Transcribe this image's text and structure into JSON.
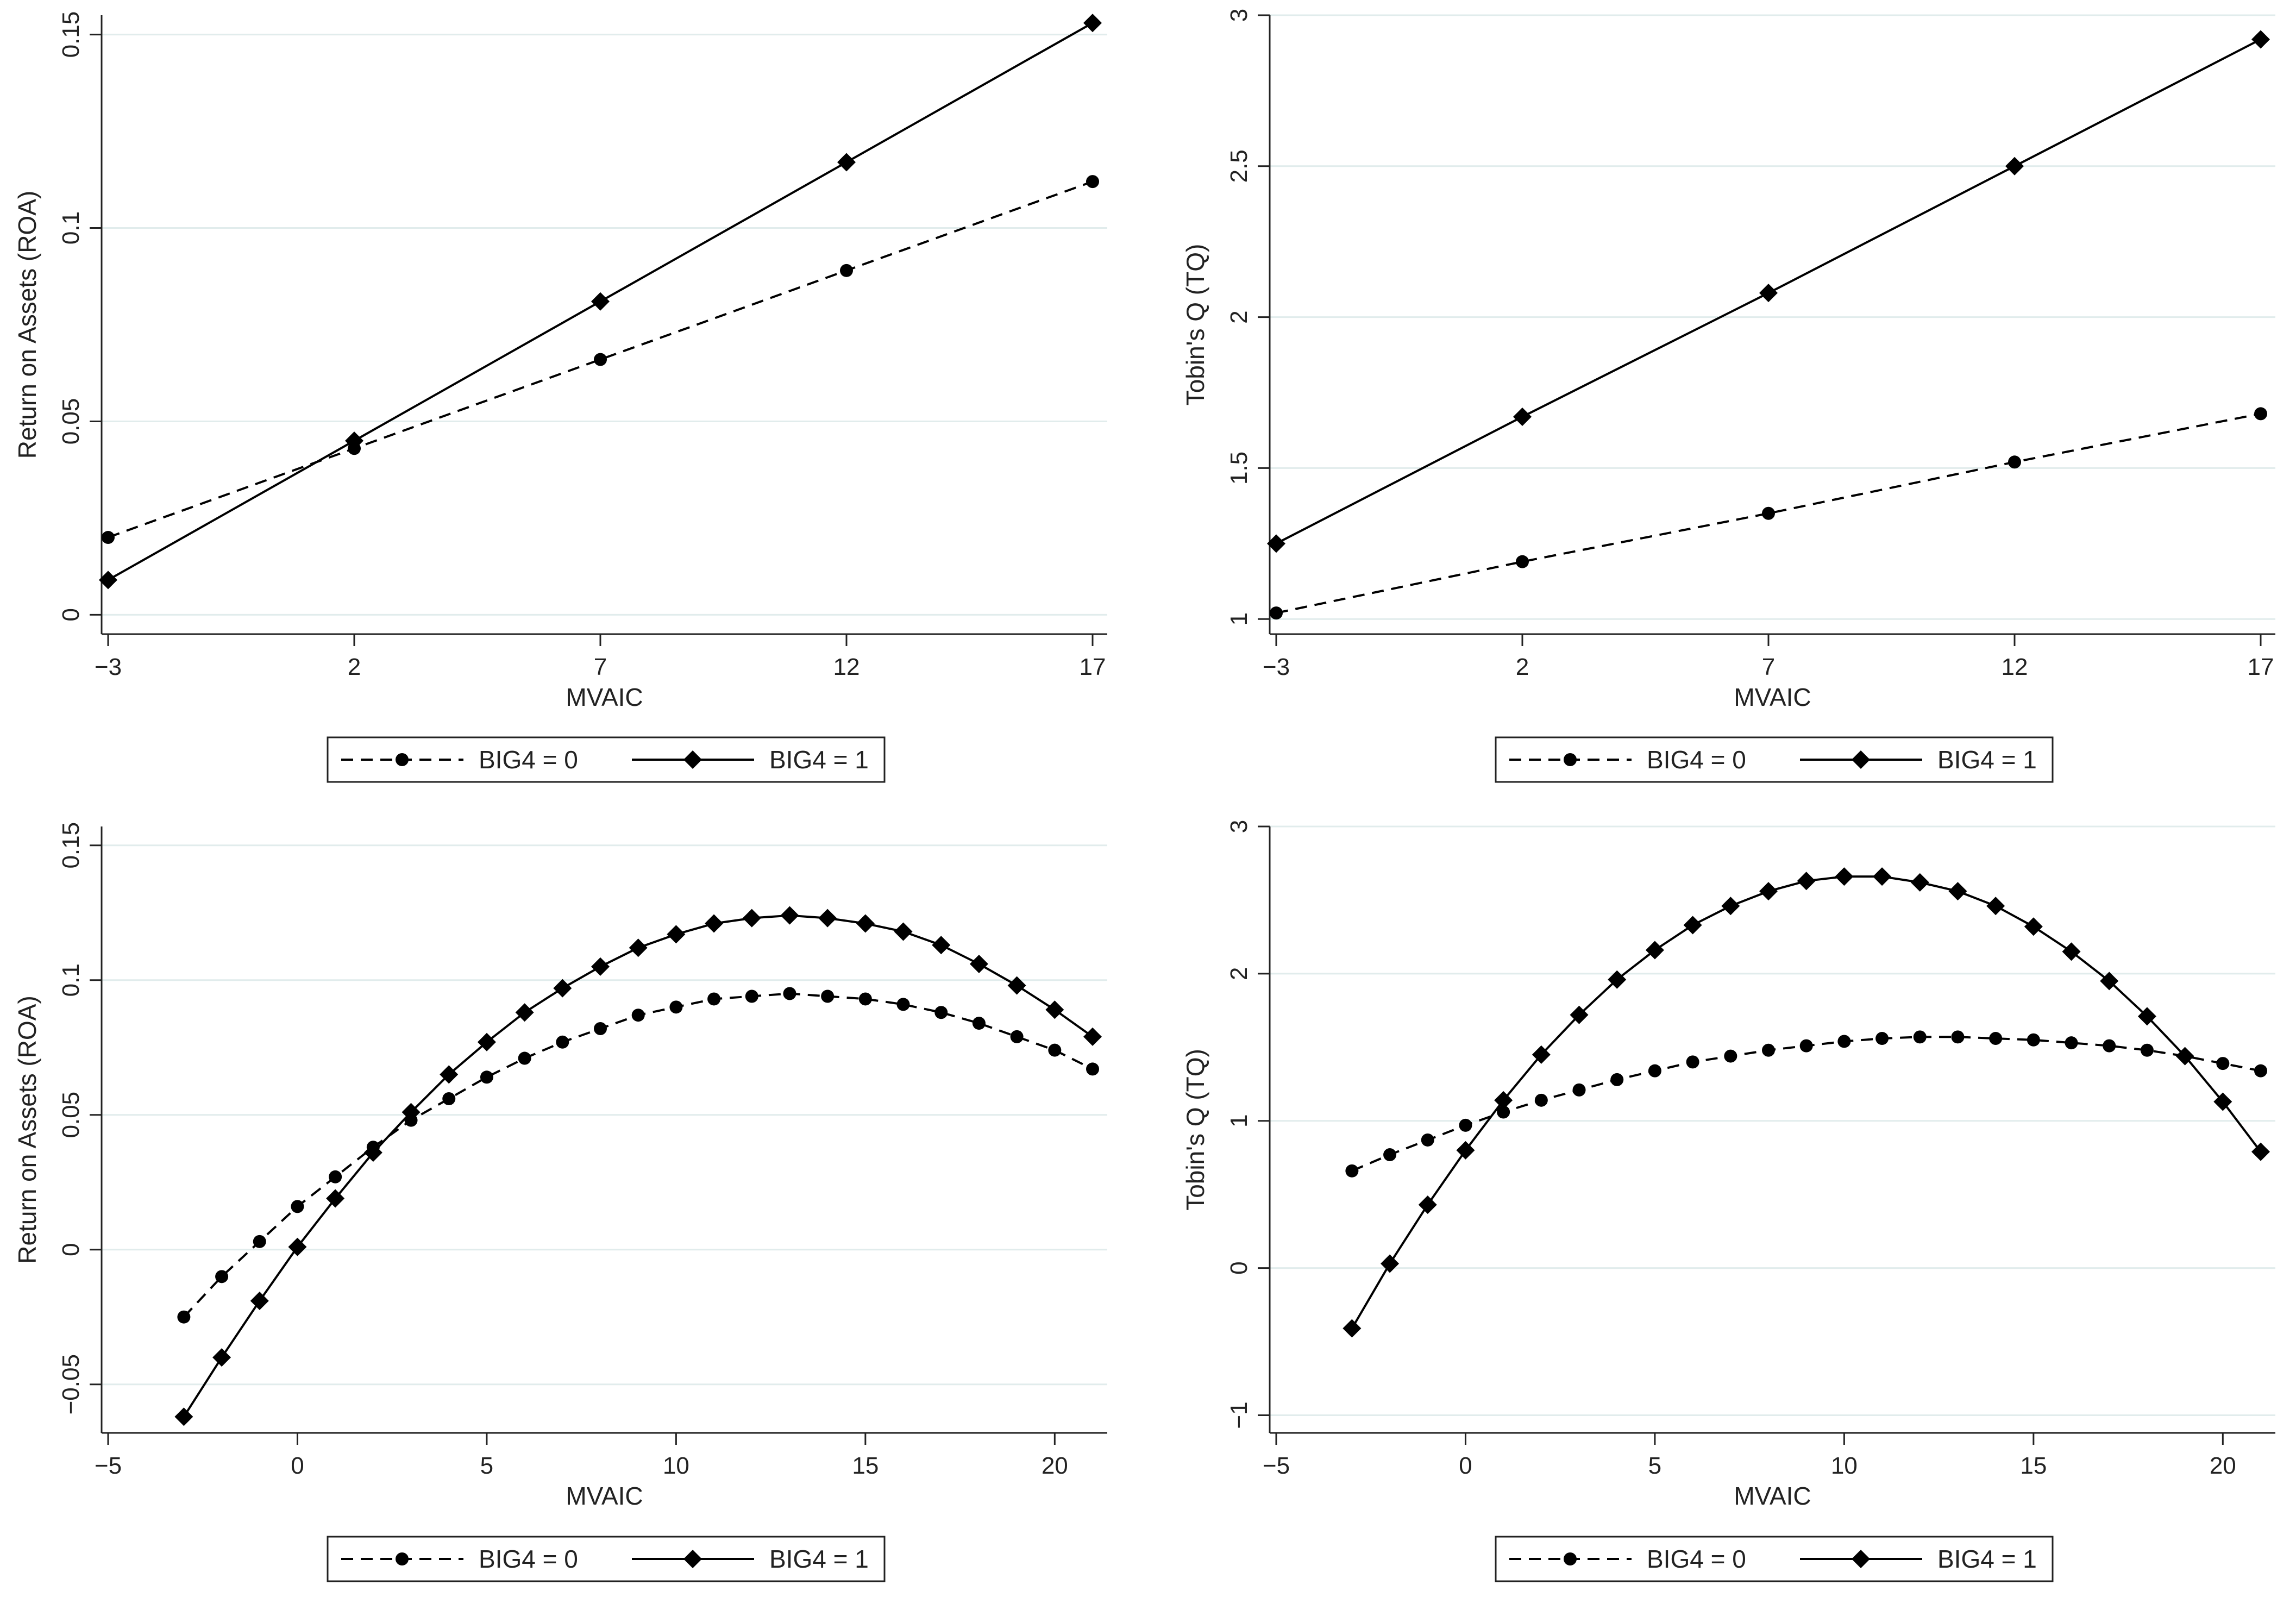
{
  "colors": {
    "background": "#ffffff",
    "axis": "#222222",
    "grid": "#e1ecec",
    "line": "#000000"
  },
  "chart_data": [
    {
      "type": "line",
      "id": "p1",
      "xlabel": "MVAIC",
      "ylabel": "Return on Assets (ROA)",
      "xlim": [
        -3,
        17
      ],
      "ylim": [
        -0.005,
        0.155
      ],
      "xticks": [
        -3,
        2,
        7,
        12,
        17
      ],
      "xtick_labels": [
        "−3",
        "2",
        "7",
        "12",
        "17"
      ],
      "yticks": [
        0,
        0.05,
        0.1,
        0.15
      ],
      "ytick_labels": [
        "0",
        "0.05",
        "0.1",
        "0.15"
      ],
      "grid": true,
      "legend_position": "bottom",
      "x": [
        -3,
        2,
        7,
        12,
        17
      ],
      "series": [
        {
          "name": "BIG4 = 0",
          "style": "dashed",
          "marker": "circle",
          "values": [
            0.02,
            0.043,
            0.066,
            0.089,
            0.112
          ]
        },
        {
          "name": "BIG4 = 1",
          "style": "solid",
          "marker": "diamond",
          "values": [
            0.009,
            0.045,
            0.081,
            0.117,
            0.153
          ]
        }
      ]
    },
    {
      "type": "line",
      "id": "p2",
      "xlabel": "MVAIC",
      "ylabel": "Tobin's Q (TQ)",
      "xlim": [
        -3,
        17
      ],
      "ylim": [
        0.95,
        3.0
      ],
      "xticks": [
        -3,
        2,
        7,
        12,
        17
      ],
      "xtick_labels": [
        "−3",
        "2",
        "7",
        "12",
        "17"
      ],
      "yticks": [
        1,
        1.5,
        2,
        2.5,
        3
      ],
      "ytick_labels": [
        "1",
        "1.5",
        "2",
        "2.5",
        "3"
      ],
      "grid": true,
      "legend_position": "bottom",
      "x": [
        -3,
        2,
        7,
        12,
        17
      ],
      "series": [
        {
          "name": "BIG4 = 0",
          "style": "dashed",
          "marker": "circle",
          "values": [
            1.02,
            1.19,
            1.35,
            1.52,
            1.68
          ]
        },
        {
          "name": "BIG4 = 1",
          "style": "solid",
          "marker": "diamond",
          "values": [
            1.25,
            1.67,
            2.08,
            2.5,
            2.92
          ]
        }
      ]
    },
    {
      "type": "line",
      "id": "p3",
      "xlabel": "MVAIC",
      "ylabel": "Return on Assets (ROA)",
      "xlim": [
        -5,
        21
      ],
      "ylim": [
        -0.068,
        0.157
      ],
      "xticks": [
        -5,
        0,
        5,
        10,
        15,
        20
      ],
      "xtick_labels": [
        "−5",
        "0",
        "5",
        "10",
        "15",
        "20"
      ],
      "yticks": [
        -0.05,
        0,
        0.05,
        0.1,
        0.15
      ],
      "ytick_labels": [
        "−0.05",
        "0",
        "0.05",
        "0.1",
        "0.15"
      ],
      "grid": true,
      "legend_position": "bottom",
      "x": [
        -3,
        -2,
        -1,
        0,
        1,
        2,
        3,
        4,
        5,
        6,
        7,
        8,
        9,
        10,
        11,
        12,
        13,
        14,
        15,
        16,
        17,
        18,
        19,
        20,
        21
      ],
      "series": [
        {
          "name": "BIG4 = 0",
          "style": "dashed",
          "marker": "circle",
          "values": [
            -0.025,
            -0.01,
            0.003,
            0.016,
            0.027,
            0.038,
            0.048,
            0.056,
            0.064,
            0.071,
            0.077,
            0.082,
            0.087,
            0.09,
            0.093,
            0.094,
            0.095,
            0.094,
            0.093,
            0.091,
            0.088,
            0.084,
            0.079,
            0.074,
            0.067
          ]
        },
        {
          "name": "BIG4 = 1",
          "style": "solid",
          "marker": "diamond",
          "values": [
            -0.062,
            -0.04,
            -0.019,
            0.001,
            0.019,
            0.036,
            0.051,
            0.065,
            0.077,
            0.088,
            0.097,
            0.105,
            0.112,
            0.117,
            0.121,
            0.123,
            0.124,
            0.123,
            0.121,
            0.118,
            0.113,
            0.106,
            0.098,
            0.089,
            0.079
          ]
        }
      ]
    },
    {
      "type": "line",
      "id": "p4",
      "xlabel": "MVAIC",
      "ylabel": "Tobin's Q (TQ)",
      "xlim": [
        -5,
        21
      ],
      "ylim": [
        -1.12,
        3.0
      ],
      "xticks": [
        -5,
        0,
        5,
        10,
        15,
        20
      ],
      "xtick_labels": [
        "−5",
        "0",
        "5",
        "10",
        "15",
        "20"
      ],
      "yticks": [
        -1,
        0,
        1,
        2,
        3
      ],
      "ytick_labels": [
        "−1",
        "0",
        "1",
        "2",
        "3"
      ],
      "grid": true,
      "legend_position": "bottom",
      "x": [
        -3,
        -2,
        -1,
        0,
        1,
        2,
        3,
        4,
        5,
        6,
        7,
        8,
        9,
        10,
        11,
        12,
        13,
        14,
        15,
        16,
        17,
        18,
        19,
        20,
        21
      ],
      "series": [
        {
          "name": "BIG4 = 0",
          "style": "dashed",
          "marker": "circle",
          "values": [
            0.66,
            0.77,
            0.87,
            0.97,
            1.06,
            1.14,
            1.21,
            1.28,
            1.34,
            1.4,
            1.44,
            1.48,
            1.51,
            1.54,
            1.56,
            1.57,
            1.57,
            1.56,
            1.55,
            1.53,
            1.51,
            1.48,
            1.44,
            1.39,
            1.34
          ]
        },
        {
          "name": "BIG4 = 1",
          "style": "solid",
          "marker": "diamond",
          "values": [
            -0.41,
            0.03,
            0.43,
            0.8,
            1.14,
            1.45,
            1.72,
            1.96,
            2.16,
            2.33,
            2.46,
            2.56,
            2.63,
            2.66,
            2.66,
            2.62,
            2.56,
            2.46,
            2.32,
            2.15,
            1.95,
            1.71,
            1.44,
            1.13,
            0.79
          ]
        }
      ]
    }
  ]
}
